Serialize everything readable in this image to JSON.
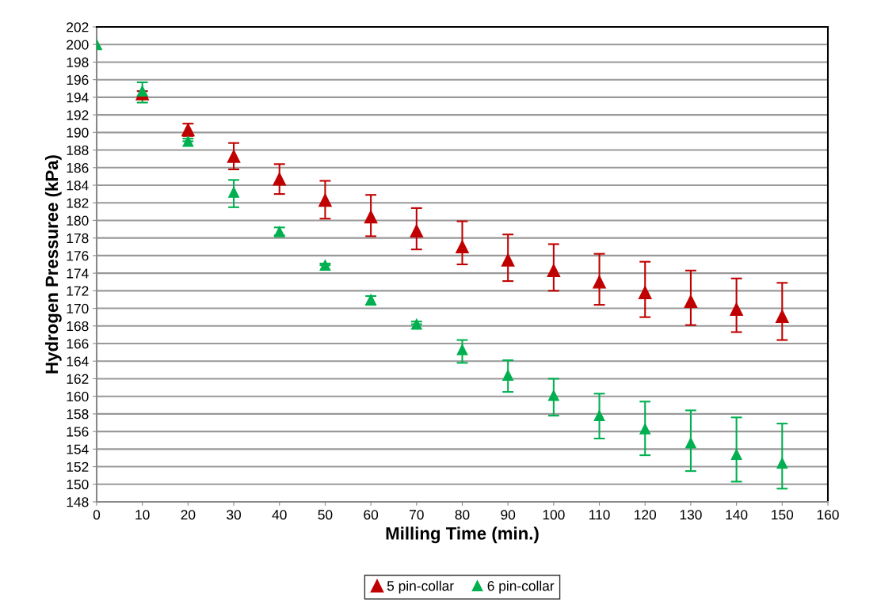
{
  "chart_data": {
    "type": "scatter",
    "xlabel": "Milling Time (min.)",
    "ylabel": "Hydrogen Pressuree (kPa)",
    "x": [
      0,
      10,
      20,
      30,
      40,
      50,
      60,
      70,
      80,
      90,
      100,
      110,
      120,
      130,
      140,
      150
    ],
    "series": [
      {
        "name": "5 pin-collar",
        "color": "#c00000",
        "values": [
          null,
          194.4,
          190.3,
          187.3,
          184.7,
          182.3,
          180.4,
          178.8,
          177.0,
          175.5,
          174.3,
          173.0,
          171.8,
          170.8,
          169.9,
          169.1
        ],
        "errors": [
          null,
          [
            194.1,
            194.7
          ],
          [
            189.6,
            191.0
          ],
          [
            185.8,
            188.8
          ],
          [
            183.0,
            186.4
          ],
          [
            180.2,
            184.5
          ],
          [
            178.2,
            182.9
          ],
          [
            176.7,
            181.4
          ],
          [
            175.0,
            179.9
          ],
          [
            173.1,
            178.4
          ],
          [
            172.0,
            177.3
          ],
          [
            170.4,
            176.2
          ],
          [
            169.0,
            175.3
          ],
          [
            168.1,
            174.3
          ],
          [
            167.3,
            173.4
          ],
          [
            166.4,
            172.9
          ]
        ]
      },
      {
        "name": "6 pin-collar",
        "color": "#00b050",
        "values": [
          200,
          194.7,
          189.0,
          183.2,
          178.7,
          174.9,
          171.0,
          168.2,
          165.3,
          162.4,
          160.1,
          157.8,
          156.3,
          154.7,
          153.4,
          152.4
        ],
        "errors": [
          null,
          [
            193.4,
            195.7
          ],
          [
            189.0,
            189.3
          ],
          [
            181.5,
            184.6
          ],
          [
            178.3,
            179.2
          ],
          [
            174.9,
            175.1
          ],
          [
            170.4,
            171.4
          ],
          [
            168.2,
            168.5
          ],
          [
            163.8,
            166.4
          ],
          [
            160.5,
            164.1
          ],
          [
            157.8,
            162.0
          ],
          [
            155.2,
            160.3
          ],
          [
            153.3,
            159.4
          ],
          [
            151.5,
            158.4
          ],
          [
            150.3,
            157.6
          ],
          [
            149.5,
            156.9
          ]
        ]
      }
    ],
    "xlim": [
      0,
      160
    ],
    "xticks": [
      0,
      10,
      20,
      30,
      40,
      50,
      60,
      70,
      80,
      90,
      100,
      110,
      120,
      130,
      140,
      150,
      160
    ],
    "ylim": [
      148,
      202
    ],
    "yticks": [
      148,
      150,
      152,
      154,
      156,
      158,
      160,
      162,
      164,
      166,
      168,
      170,
      172,
      174,
      176,
      178,
      180,
      182,
      184,
      186,
      188,
      190,
      192,
      194,
      196,
      198,
      200,
      202
    ],
    "grid": "y",
    "legend": "bottom",
    "marker": "triangle"
  }
}
